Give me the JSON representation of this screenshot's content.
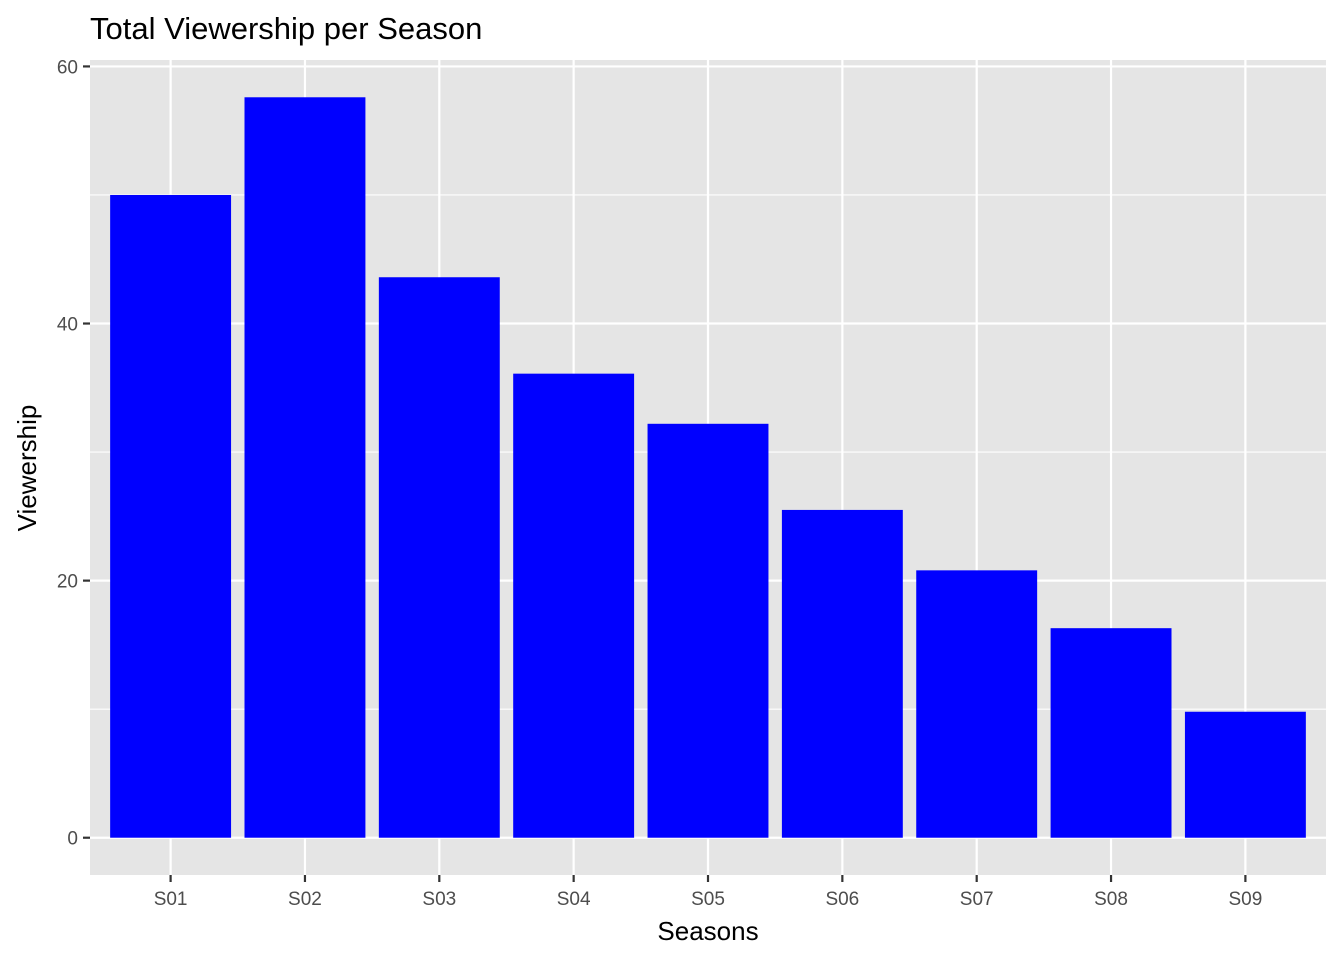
{
  "chart_data": {
    "type": "bar",
    "title": "Total Viewership per Season",
    "xlabel": "Seasons",
    "ylabel": "Viewership",
    "categories": [
      "S01",
      "S02",
      "S03",
      "S04",
      "S05",
      "S06",
      "S07",
      "S08",
      "S09"
    ],
    "values": [
      50.0,
      57.6,
      43.6,
      36.1,
      32.2,
      25.5,
      20.8,
      16.3,
      9.8
    ],
    "ylim": [
      -2.9,
      60.5
    ],
    "yticks": [
      0,
      20,
      40,
      60
    ],
    "grid": true,
    "legend": "none",
    "colors": {
      "bar": "#0000ff",
      "panel": "#e5e5e5",
      "grid": "#ffffff"
    }
  }
}
